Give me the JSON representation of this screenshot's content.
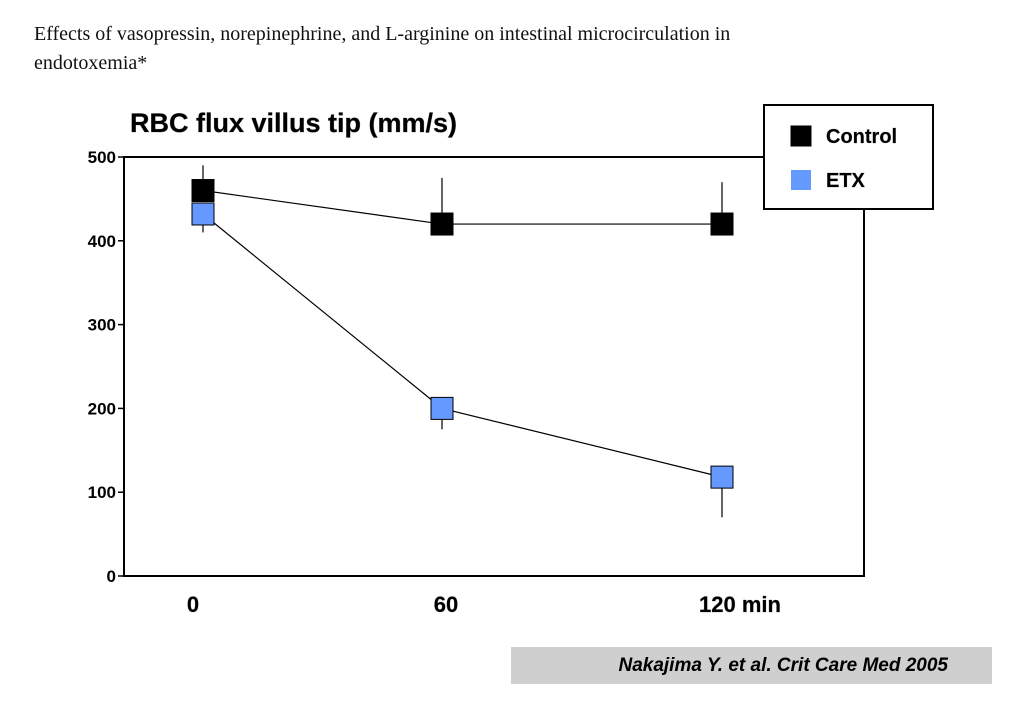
{
  "heading": "Effects of vasopressin, norepinephrine, and L-arginine on intestinal microcirculation in endotoxemia*",
  "citation": "Nakajima Y. et al. Crit Care Med 2005",
  "chart_data": {
    "type": "line",
    "title": "RBC flux villus tip (mm/s)",
    "xlabel": "",
    "ylabel": "",
    "x": [
      0,
      60,
      120
    ],
    "x_tick_labels": [
      "0",
      "60",
      "120 min"
    ],
    "ylim": [
      0,
      500
    ],
    "y_ticks": [
      0,
      100,
      200,
      300,
      400,
      500
    ],
    "grid": false,
    "legend_position": "top-right",
    "series": [
      {
        "name": "Control",
        "color": "#000000",
        "marker": "square",
        "values": [
          460,
          420,
          420
        ],
        "error_upper": [
          490,
          475,
          470
        ],
        "error_lower": [
          null,
          null,
          null
        ]
      },
      {
        "name": "ETX",
        "color": "#6699ff",
        "marker": "square",
        "values": [
          432,
          200,
          118
        ],
        "error_upper": [
          null,
          null,
          null
        ],
        "error_lower": [
          410,
          175,
          70
        ]
      }
    ]
  }
}
